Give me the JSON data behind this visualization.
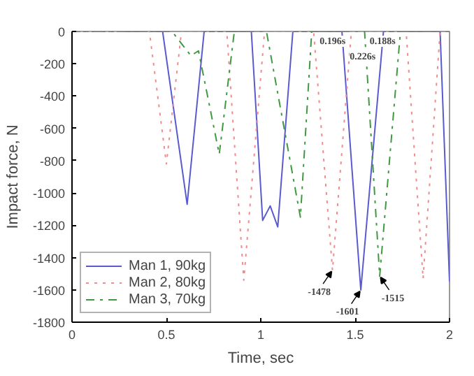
{
  "chart_data": {
    "type": "line",
    "xlabel": "Time, sec",
    "ylabel": "Impact force, N",
    "xlim": [
      0,
      2
    ],
    "ylim": [
      -1800,
      0
    ],
    "xticks": [
      0,
      0.5,
      1,
      1.5,
      2
    ],
    "yticks": [
      -1800,
      -1600,
      -1400,
      -1200,
      -1000,
      -800,
      -600,
      -400,
      -200,
      0
    ],
    "grid": false,
    "legend": "bottom left",
    "series": [
      {
        "name": "Man 1, 90kg",
        "color": "#5a5ad0",
        "line_style": "solid",
        "x": [
          0,
          0.48,
          0.61,
          0.7,
          0.95,
          1.01,
          1.05,
          1.09,
          1.17,
          1.43,
          1.53,
          1.65,
          1.95,
          2.0
        ],
        "values": [
          0,
          0,
          -1070,
          0,
          0,
          -1170,
          -1080,
          -1210,
          0,
          0,
          -1601,
          0,
          0,
          -1550
        ]
      },
      {
        "name": "Man 2, 80kg",
        "color": "#f08c8c",
        "line_style": "dotted",
        "x": [
          0,
          0.41,
          0.5,
          0.58,
          0.82,
          0.91,
          1.02,
          1.28,
          1.38,
          1.48,
          1.77,
          1.86,
          1.95,
          2.0
        ],
        "values": [
          0,
          0,
          -820,
          0,
          0,
          -1540,
          0,
          0,
          -1478,
          0,
          0,
          -1530,
          0,
          0
        ]
      },
      {
        "name": "Man 3, 70kg",
        "color": "#3f9a3f",
        "line_style": "dashdot",
        "x": [
          0,
          0.53,
          0.63,
          0.67,
          0.78,
          0.86,
          1.03,
          1.21,
          1.27,
          1.55,
          1.63,
          1.74,
          2.0
        ],
        "values": [
          0,
          0,
          -150,
          -120,
          -760,
          0,
          0,
          -1150,
          0,
          0,
          -1515,
          0,
          0
        ]
      }
    ],
    "annotations": [
      {
        "text": "-1478",
        "x": 1.38,
        "y": -1478
      },
      {
        "text": "-1601",
        "x": 1.53,
        "y": -1601
      },
      {
        "text": "-1515",
        "x": 1.63,
        "y": -1515
      },
      {
        "text": "0.196s",
        "x": 1.38,
        "y": 0
      },
      {
        "text": "0.226s",
        "x": 1.54,
        "y": 0
      },
      {
        "text": "0.188s",
        "x": 1.645,
        "y": 0
      }
    ]
  }
}
